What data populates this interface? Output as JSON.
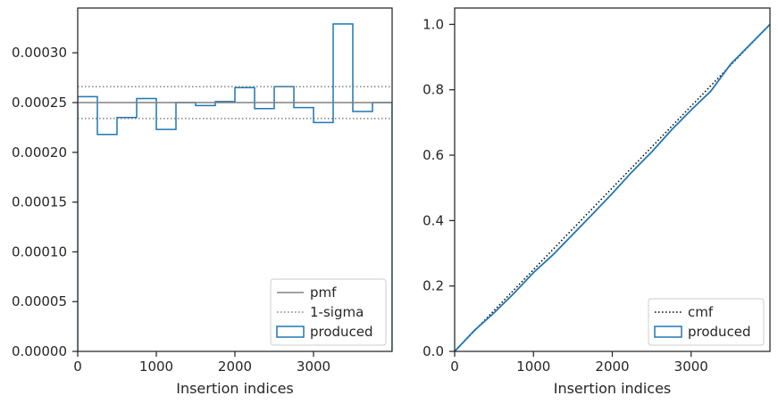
{
  "chart_data": [
    {
      "type": "histogram",
      "xlabel": "Insertion indices",
      "ylabel": "",
      "xlim": [
        0,
        4000
      ],
      "ylim": [
        0,
        0.000345
      ],
      "xticks": [
        0,
        1000,
        2000,
        3000
      ],
      "xtick_labels": [
        "0",
        "1000",
        "2000",
        "3000"
      ],
      "yticks": [
        0,
        5e-05,
        0.0001,
        0.00015,
        0.0002,
        0.00025,
        0.0003
      ],
      "ytick_labels": [
        "0.00000",
        "0.00005",
        "0.00010",
        "0.00015",
        "0.00020",
        "0.00025",
        "0.00030"
      ],
      "bin_edges": [
        0,
        250,
        500,
        750,
        1000,
        1250,
        1500,
        1750,
        2000,
        2250,
        2500,
        2750,
        3000,
        3250,
        3500,
        3750,
        4000
      ],
      "series": [
        {
          "name": "produced",
          "style": "step",
          "color": "#1f77b4",
          "values": [
            0.000256,
            0.000218,
            0.000235,
            0.000254,
            0.000223,
            0.00025,
            0.000247,
            0.000251,
            0.000265,
            0.000244,
            0.000266,
            0.000245,
            0.00023,
            0.000329,
            0.000241,
            0.00025
          ]
        },
        {
          "name": "pmf",
          "style": "solid",
          "color": "#808080",
          "y": 0.00025
        },
        {
          "name": "1-sigma",
          "style": "dotted",
          "color": "#808080",
          "y": [
            0.000234,
            0.000266
          ]
        }
      ],
      "legend": {
        "position": "lower right",
        "entries": [
          "pmf",
          "1-sigma",
          "produced"
        ]
      }
    },
    {
      "type": "line",
      "xlabel": "Insertion indices",
      "ylabel": "",
      "xlim": [
        0,
        4000
      ],
      "ylim": [
        0,
        1.05
      ],
      "xticks": [
        0,
        1000,
        2000,
        3000
      ],
      "xtick_labels": [
        "0",
        "1000",
        "2000",
        "3000"
      ],
      "yticks": [
        0,
        0.2,
        0.4,
        0.6,
        0.8,
        1.0
      ],
      "ytick_labels": [
        "0.0",
        "0.2",
        "0.4",
        "0.6",
        "0.8",
        "1.0"
      ],
      "series": [
        {
          "name": "cmf",
          "style": "dotted",
          "color": "#000000",
          "x": [
            0,
            4000
          ],
          "y": [
            0,
            1.0
          ]
        },
        {
          "name": "produced",
          "style": "step",
          "color": "#1f77b4",
          "x": [
            0,
            250,
            500,
            750,
            1000,
            1250,
            1500,
            1750,
            2000,
            2250,
            2500,
            2750,
            3000,
            3250,
            3500,
            3750,
            4000
          ],
          "y": [
            0,
            0.064,
            0.118,
            0.177,
            0.241,
            0.296,
            0.358,
            0.42,
            0.483,
            0.549,
            0.61,
            0.677,
            0.738,
            0.796,
            0.878,
            0.939,
            1.0
          ]
        }
      ],
      "legend": {
        "position": "lower right",
        "entries": [
          "cmf",
          "produced"
        ]
      }
    }
  ]
}
